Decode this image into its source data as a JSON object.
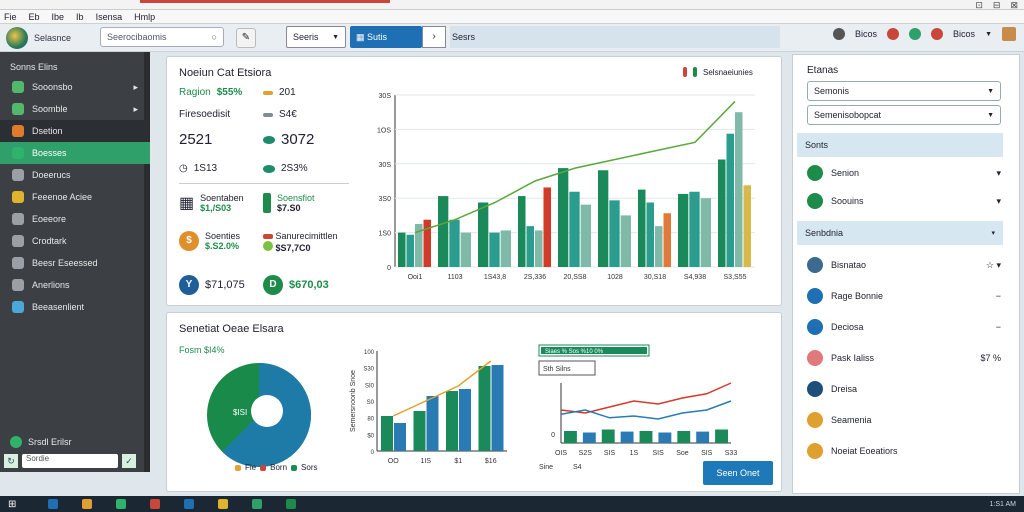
{
  "menu": [
    "Fie",
    "Eb",
    "Ibe",
    "Ib",
    "Isensa",
    "Hmlp"
  ],
  "window_controls": [
    "⊡",
    "⊟",
    "⊠"
  ],
  "toolbar": {
    "app_name": "Selasnce",
    "search_placeholder": "Seerocibaomis",
    "select_label": "Seeris",
    "blue_button": "Sutis",
    "tab_label": "Sesrs",
    "right_label": "Bicos"
  },
  "sidebar": {
    "header": "Sonns Elins",
    "items": [
      {
        "label": "Sooonsbo",
        "caret": "▸",
        "color": "#52b86b"
      },
      {
        "label": "Soomble",
        "caret": "▸",
        "color": "#52b86b"
      },
      {
        "label": "Dsetion",
        "caret": "",
        "color": "#e07a2d"
      },
      {
        "label": "Boesses",
        "caret": "",
        "color": "#2fb36a"
      },
      {
        "label": "Doeerucs",
        "caret": "",
        "color": "#9aa0a6"
      },
      {
        "label": "Feeenoe Aciee",
        "caret": "",
        "color": "#e0b32d"
      },
      {
        "label": "Eoeeore",
        "caret": "",
        "color": "#9aa0a6"
      },
      {
        "label": "Crodtark",
        "caret": "",
        "color": "#9aa0a6"
      },
      {
        "label": "Beesr Eseessed",
        "caret": "",
        "color": "#9aa0a6"
      },
      {
        "label": "Anerlions",
        "caret": "",
        "color": "#9aa0a6"
      },
      {
        "label": "Beeasenlient",
        "caret": "",
        "color": "#4aa7d8"
      }
    ],
    "status": "Srsdl Erilsr",
    "search_placeholder": "Sordie"
  },
  "panel1": {
    "title": "Noeiun Cat Etsiora",
    "badge": "Selsnaeiunies",
    "region_label": "Ragion",
    "region_value": "$55%",
    "region_side": "201",
    "fin_label": "Firesoedisit",
    "fin_side": "S4€",
    "big_value": "2521",
    "big_side": "3072",
    "sub_left": "1S13",
    "sub_right": "2S3%",
    "grid_label": "Soentaben",
    "grid_value": "$1,/S03",
    "bar_label": "Soensfiot",
    "bar_value": "$7.S0",
    "circle_label": "Soenties",
    "circle_value": "$.S2.0%",
    "redbar_label": "Sanurecimittlen",
    "redbar_value": "$S7,7C0",
    "y_value": "$71,075",
    "d_value": "$670,03"
  },
  "chart_main": {
    "type": "bar",
    "categories": [
      "Ooi1",
      "1103",
      "1S43,8",
      "2S,336",
      "20,SS8",
      "1028",
      "30,S18",
      "S4,938",
      "S3,S55"
    ],
    "x_tick_labels": [
      "Ooi1",
      "1103",
      "1S43,8",
      "2S,336",
      "20,SS8",
      "1028",
      "30,S18",
      "S4,938",
      "S3,S55"
    ],
    "y_tick_labels": [
      "0",
      "1S0",
      "3S0",
      "30S",
      "1OS",
      "30S"
    ],
    "ylim": [
      0,
      400
    ],
    "series": [
      {
        "color": "#1a8a5a",
        "values": [
          80,
          165,
          150,
          165,
          230,
          225,
          180,
          170,
          250
        ]
      },
      {
        "color": "#2a9d8f",
        "values": [
          75,
          110,
          80,
          95,
          175,
          155,
          150,
          175,
          310
        ]
      },
      {
        "color": "#7fb9a8",
        "values": [
          100,
          80,
          85,
          85,
          145,
          120,
          95,
          160,
          360
        ]
      },
      {
        "color": "#d23a2a",
        "values": [
          110,
          0,
          0,
          185,
          0,
          0,
          0,
          0,
          0
        ]
      },
      {
        "color": "#e07a3a",
        "values": [
          0,
          0,
          0,
          0,
          0,
          0,
          125,
          0,
          0
        ]
      },
      {
        "color": "#d8b84a",
        "values": [
          0,
          0,
          0,
          0,
          0,
          0,
          0,
          0,
          190
        ]
      }
    ],
    "trend": [
      80,
      110,
      150,
      200,
      230,
      250,
      270,
      290,
      385
    ],
    "trend_color": "#5aa83a"
  },
  "panel2": {
    "title": "Senetiat Oeae Elsara",
    "pie_label": "Fosm $I4%",
    "pie_center": "$ISI",
    "pie_legend": [
      "Fie",
      "Born",
      "Sors"
    ],
    "pie_legend_colors": [
      "#e6a03a",
      "#c8473a",
      "#1a8a5a"
    ],
    "btn": "Seen Onet"
  },
  "chart_mini1": {
    "type": "bar",
    "categories": [
      "OO",
      "1IS",
      "$1",
      "$16"
    ],
    "y_tick_labels": [
      "0",
      "$0",
      "80",
      "S0",
      "SI0",
      "S30",
      "100"
    ],
    "ylabel": "Semersnoonb Snoe",
    "ylim": [
      0,
      100
    ],
    "series": [
      {
        "color": "#1a8a5a",
        "values": [
          35,
          40,
          60,
          85
        ]
      },
      {
        "color": "#2a7bb3",
        "values": [
          28,
          55,
          62,
          86
        ]
      }
    ],
    "trend": [
      35,
      50,
      65,
      90
    ],
    "trend_color": "#e0a030"
  },
  "chart_mini2": {
    "type": "line",
    "x": [
      "OIS",
      "S2S",
      "SIS",
      "1S",
      "SIS",
      "Soe",
      "SIS",
      "S33"
    ],
    "y_tick_labels": [
      "0"
    ],
    "legend_top": "Siaes % Sos  %10 0%",
    "legend_small": "Sth Silns",
    "xlabel_left": "Sine",
    "xlabel_right": "S4",
    "bars": [
      40,
      35,
      45,
      38,
      40,
      35,
      40,
      38,
      45
    ],
    "series": [
      {
        "color": "#d23a2a",
        "values": [
          55,
          50,
          60,
          70,
          65,
          75,
          82,
          100
        ]
      },
      {
        "color": "#2a7bb3",
        "values": [
          48,
          55,
          42,
          45,
          40,
          50,
          55,
          70
        ]
      }
    ]
  },
  "right_panel": {
    "title": "Etanas",
    "sel1": "Semonis",
    "sel2": "Semenisobopcat",
    "sec1": "Sonts",
    "rows1": [
      {
        "label": "Senion",
        "color": "#1d8c4a",
        "tail": "▾"
      },
      {
        "label": "Soouins",
        "color": "#1d8c4a",
        "tail": "▾"
      }
    ],
    "sec2": "Senbdnia",
    "rows2": [
      {
        "label": "Bisnatao",
        "color": "#3b6c8f",
        "tail": "☆ ▾"
      },
      {
        "label": "Rage Bonnie",
        "color": "#1e6fb3",
        "tail": "−"
      },
      {
        "label": "Deciosa",
        "color": "#1e6fb3",
        "tail": "−"
      },
      {
        "label": "Pask Ialiss",
        "color": "#e07a7a",
        "tail": "$7 %"
      },
      {
        "label": "Dreisa",
        "color": "#1d4f7a",
        "tail": ""
      },
      {
        "label": "Seamenia",
        "color": "#e0a030",
        "tail": ""
      },
      {
        "label": "Noeiat Eoeatiors",
        "color": "#e0a030",
        "tail": ""
      }
    ]
  },
  "taskbar": {
    "icons": [
      "#1e6fb3",
      "#e0a030",
      "#2fb36a",
      "#c8473a",
      "#1e6fb3",
      "#e0b32d",
      "#2fa06a",
      "#1d8c4a"
    ],
    "clock": "1:S1 AM"
  }
}
